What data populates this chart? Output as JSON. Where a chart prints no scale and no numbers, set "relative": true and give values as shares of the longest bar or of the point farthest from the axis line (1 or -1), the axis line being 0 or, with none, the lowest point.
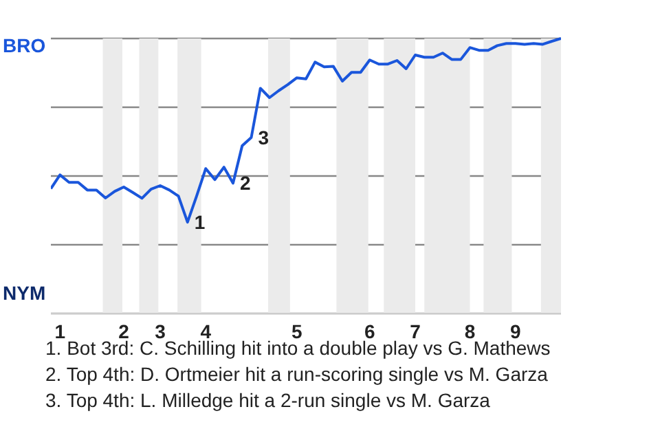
{
  "chart_data": {
    "type": "line",
    "categories": [
      null,
      "1",
      null,
      null,
      null,
      null,
      null,
      null,
      "2",
      null,
      null,
      null,
      "3",
      null,
      null,
      null,
      null,
      "4",
      null,
      null,
      null,
      null,
      null,
      null,
      null,
      null,
      null,
      "5",
      null,
      null,
      null,
      null,
      null,
      null,
      null,
      "6",
      null,
      null,
      null,
      null,
      "7",
      null,
      null,
      null,
      null,
      null,
      "8",
      null,
      null,
      null,
      null,
      "9",
      null,
      null,
      null,
      null,
      null
    ],
    "series": [
      {
        "color": "#1a56db",
        "values": [
          0.454,
          0.504,
          0.477,
          0.477,
          0.449,
          0.449,
          0.42,
          0.444,
          0.46,
          0.44,
          0.419,
          0.452,
          0.465,
          0.449,
          0.427,
          0.332,
          0.427,
          0.527,
          0.487,
          0.532,
          0.474,
          0.61,
          0.64,
          0.819,
          0.785,
          0.81,
          0.832,
          0.857,
          0.853,
          0.914,
          0.897,
          0.899,
          0.845,
          0.877,
          0.877,
          0.922,
          0.907,
          0.907,
          0.92,
          0.89,
          0.94,
          0.932,
          0.932,
          0.947,
          0.924,
          0.924,
          0.967,
          0.957,
          0.957,
          0.974,
          0.982,
          0.982,
          0.979,
          0.982,
          0.979,
          0.99,
          1
        ]
      }
    ],
    "relative": true,
    "grid": "y",
    "legend": false,
    "marker": "none",
    "annotations": [
      "1",
      "2",
      "3",
      "BRO",
      "NYM",
      "1. Bot 3rd: C. Schilling hit into a double play vs G. Mathews",
      "2. Top 4th: D. Ortmeier hit a run-scoring single vs M. Garza",
      "3. Top 4th: L. Milledge hit a 2-run single vs M. Garza"
    ]
  }
}
